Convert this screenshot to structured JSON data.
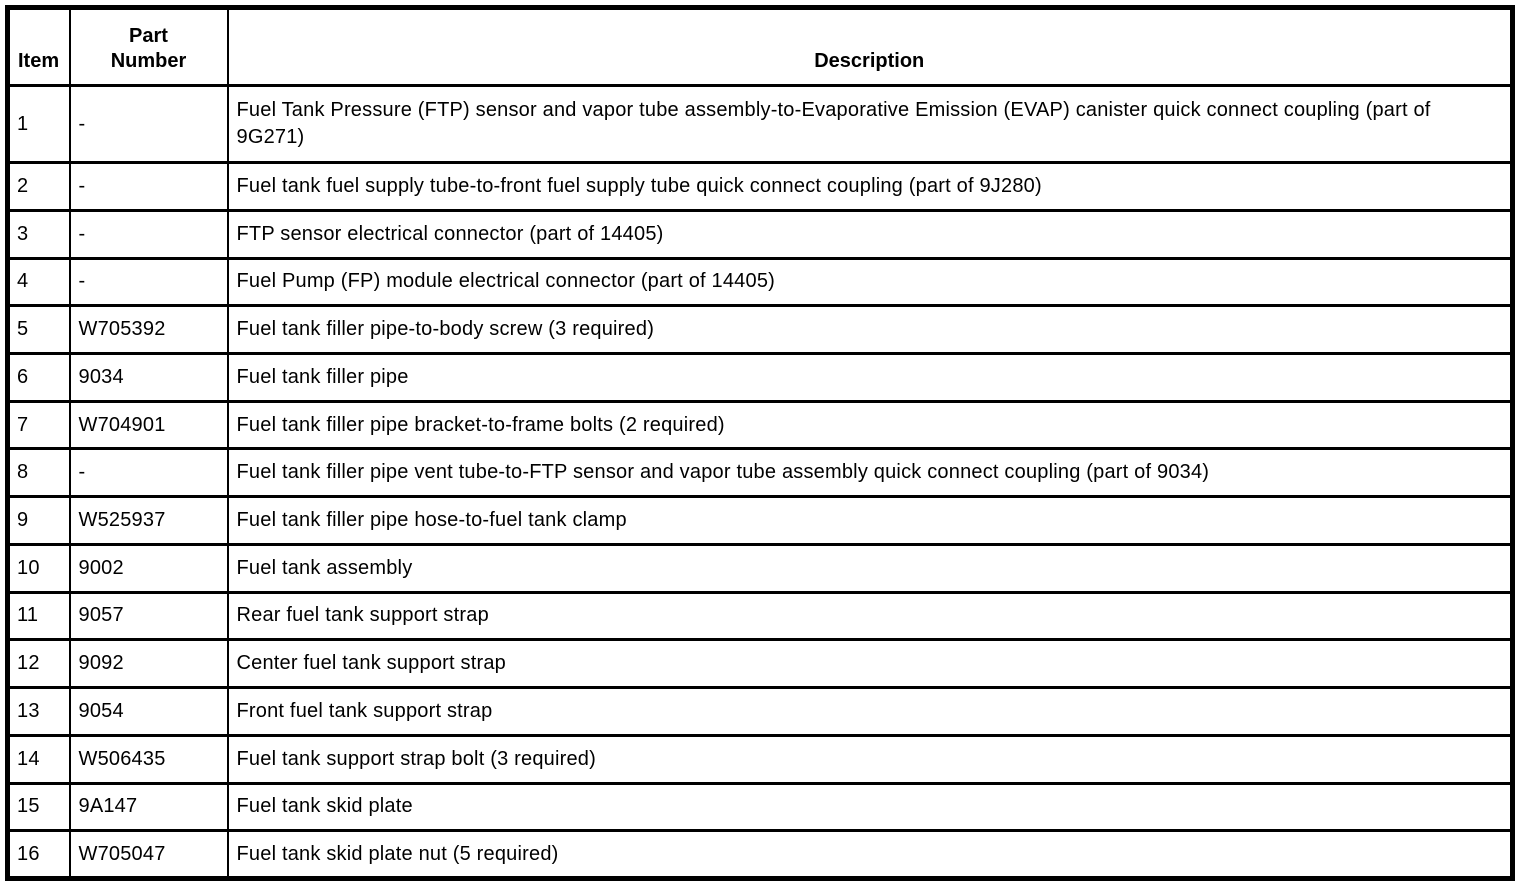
{
  "colors": {
    "background": "#ffffff",
    "border": "#000000",
    "text": "#000000"
  },
  "table": {
    "columns": [
      {
        "key": "item",
        "label": "Item"
      },
      {
        "key": "part_number",
        "label": "Part Number"
      },
      {
        "key": "description",
        "label": "Description"
      }
    ],
    "rows": [
      {
        "item": "1",
        "part_number": "-",
        "description": "Fuel Tank Pressure (FTP) sensor and vapor tube assembly-to-Evaporative Emission (EVAP) canister quick connect coupling (part of 9G271)"
      },
      {
        "item": "2",
        "part_number": "-",
        "description": "Fuel tank fuel supply tube-to-front fuel supply tube quick connect coupling (part of 9J280)"
      },
      {
        "item": "3",
        "part_number": "-",
        "description": "FTP sensor electrical connector (part of 14405)"
      },
      {
        "item": "4",
        "part_number": "-",
        "description": "Fuel Pump (FP) module electrical connector (part of 14405)"
      },
      {
        "item": "5",
        "part_number": "W705392",
        "description": "Fuel tank filler pipe-to-body screw (3 required)"
      },
      {
        "item": "6",
        "part_number": "9034",
        "description": "Fuel tank filler pipe"
      },
      {
        "item": "7",
        "part_number": "W704901",
        "description": "Fuel tank filler pipe bracket-to-frame bolts (2 required)"
      },
      {
        "item": "8",
        "part_number": "-",
        "description": "Fuel tank filler pipe vent tube-to-FTP sensor and vapor tube assembly quick connect coupling (part of 9034)"
      },
      {
        "item": "9",
        "part_number": "W525937",
        "description": "Fuel tank filler pipe hose-to-fuel tank clamp"
      },
      {
        "item": "10",
        "part_number": "9002",
        "description": "Fuel tank assembly"
      },
      {
        "item": "11",
        "part_number": "9057",
        "description": "Rear fuel tank support strap"
      },
      {
        "item": "12",
        "part_number": "9092",
        "description": "Center fuel tank support strap"
      },
      {
        "item": "13",
        "part_number": "9054",
        "description": "Front fuel tank support strap"
      },
      {
        "item": "14",
        "part_number": "W506435",
        "description": "Fuel tank support strap bolt (3 required)"
      },
      {
        "item": "15",
        "part_number": "9A147",
        "description": "Fuel tank skid plate"
      },
      {
        "item": "16",
        "part_number": "W705047",
        "description": "Fuel tank skid plate nut (5 required)"
      }
    ]
  }
}
